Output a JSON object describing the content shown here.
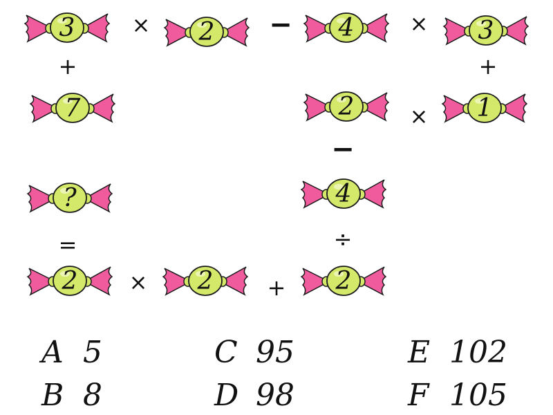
{
  "candies": [
    "3",
    "2",
    "4",
    "3",
    "7",
    "2",
    "1",
    "?",
    "4",
    "2",
    "2",
    "2"
  ],
  "operators": [
    "×",
    "−",
    "×",
    "+",
    "+",
    "×",
    "−",
    "=",
    "÷",
    "×",
    "+"
  ],
  "options": [
    {
      "letter": "A",
      "value": "5"
    },
    {
      "letter": "B",
      "value": "8"
    },
    {
      "letter": "C",
      "value": "95"
    },
    {
      "letter": "D",
      "value": "98"
    },
    {
      "letter": "E",
      "value": "102"
    },
    {
      "letter": "F",
      "value": "105"
    }
  ],
  "colors": {
    "wrapper": "#ef5b9c",
    "candy": "#d4e86a",
    "outline": "#1a1a1a"
  },
  "icon": "candy-icon"
}
